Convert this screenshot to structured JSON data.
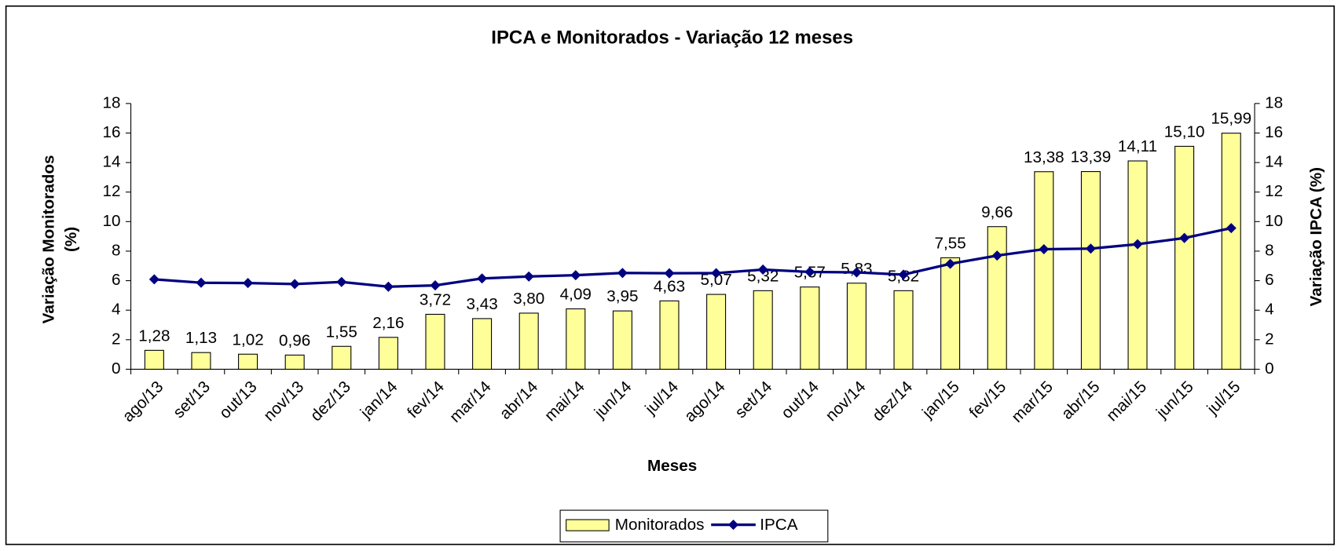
{
  "chart_data": {
    "type": "combo",
    "title": "IPCA e Monitorados - Variação 12 meses",
    "xlabel": "Meses",
    "ylabel": [
      "Variação Monitorados",
      "(%)"
    ],
    "y2label": "Variação IPCA (%)",
    "categories": [
      "ago/13",
      "set/13",
      "out/13",
      "nov/13",
      "dez/13",
      "jan/14",
      "fev/14",
      "mar/14",
      "abr/14",
      "mai/14",
      "jun/14",
      "jul/14",
      "ago/14",
      "set/14",
      "out/14",
      "nov/14",
      "dez/14",
      "jan/15",
      "fev/15",
      "mar/15",
      "abr/15",
      "mai/15",
      "jun/15",
      "jul/15"
    ],
    "series": [
      {
        "name": "Monitorados",
        "type": "bar",
        "axis": "y",
        "color": "#ffff99",
        "values": [
          1.28,
          1.13,
          1.02,
          0.96,
          1.55,
          2.16,
          3.72,
          3.43,
          3.8,
          4.09,
          3.95,
          4.63,
          5.07,
          5.32,
          5.57,
          5.83,
          5.32,
          7.55,
          9.66,
          13.38,
          13.39,
          14.11,
          15.1,
          15.99
        ],
        "value_labels": [
          "1,28",
          "1,13",
          "1,02",
          "0,96",
          "1,55",
          "2,16",
          "3,72",
          "3,43",
          "3,80",
          "4,09",
          "3,95",
          "4,63",
          "5,07",
          "5,32",
          "5,57",
          "5,83",
          "5,32",
          "7,55",
          "9,66",
          "13,38",
          "13,39",
          "14,11",
          "15,10",
          "15,99"
        ]
      },
      {
        "name": "IPCA",
        "type": "line",
        "axis": "y2",
        "color": "#000080",
        "values": [
          6.09,
          5.86,
          5.84,
          5.77,
          5.91,
          5.59,
          5.68,
          6.15,
          6.28,
          6.37,
          6.52,
          6.5,
          6.51,
          6.75,
          6.59,
          6.56,
          6.41,
          7.14,
          7.7,
          8.13,
          8.17,
          8.47,
          8.89,
          9.56
        ]
      }
    ],
    "ylim": [
      0,
      18
    ],
    "yticks": [
      0,
      2,
      4,
      6,
      8,
      10,
      12,
      14,
      16,
      18
    ],
    "y2lim": [
      0,
      18
    ],
    "y2ticks": [
      0,
      2,
      4,
      6,
      8,
      10,
      12,
      14,
      16,
      18
    ],
    "grid": false,
    "legend": "bottom"
  }
}
